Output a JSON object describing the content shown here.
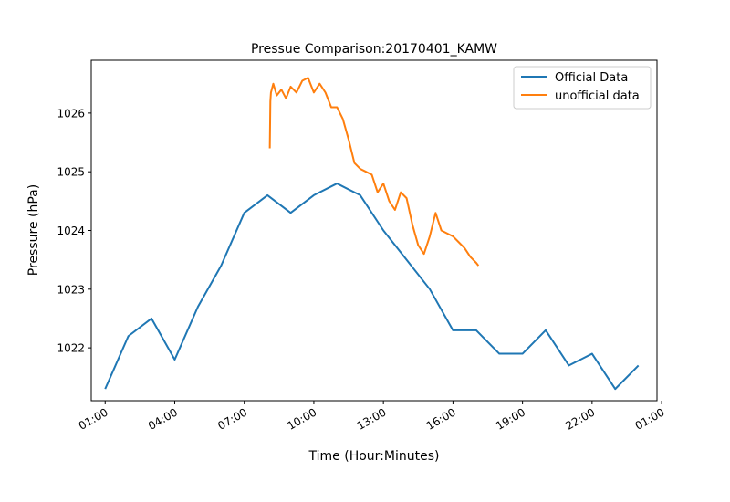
{
  "chart_data": {
    "type": "line",
    "title": "Pressue Comparison:20170401_KAMW",
    "xlabel": "Time (Hour:Minutes)",
    "ylabel": "Pressure (hPa)",
    "x_unit": "hours",
    "xlim": [
      -1.2,
      47.6
    ],
    "ylim": [
      1021.1,
      1026.9
    ],
    "x_ticks": [
      {
        "value": 0,
        "label": "01:00"
      },
      {
        "value": 6,
        "label": "04:00"
      },
      {
        "value": 12,
        "label": "07:00"
      },
      {
        "value": 18,
        "label": "10:00"
      },
      {
        "value": 24,
        "label": "13:00"
      },
      {
        "value": 30,
        "label": "16:00"
      },
      {
        "value": 36,
        "label": "19:00"
      },
      {
        "value": 42,
        "label": "22:00"
      },
      {
        "value": 48,
        "label": "01:00"
      }
    ],
    "y_ticks": [
      {
        "value": 1022,
        "label": "1022"
      },
      {
        "value": 1023,
        "label": "1023"
      },
      {
        "value": 1024,
        "label": "1024"
      },
      {
        "value": 1025,
        "label": "1025"
      },
      {
        "value": 1026,
        "label": "1026"
      }
    ],
    "legend": {
      "position": "top-right"
    },
    "grid": false,
    "series": [
      {
        "name": "Official Data",
        "color": "#1f77b4",
        "x": [
          0,
          2,
          4,
          6,
          8,
          10,
          12,
          14,
          16,
          18,
          20,
          22,
          24,
          26,
          28,
          30,
          32,
          34,
          36,
          38,
          40,
          42,
          44,
          46
        ],
        "y": [
          1021.3,
          1022.2,
          1022.5,
          1021.8,
          1022.7,
          1023.4,
          1024.3,
          1024.6,
          1024.3,
          1024.6,
          1024.8,
          1024.6,
          1024.0,
          1023.5,
          1023.0,
          1022.3,
          1022.3,
          1021.9,
          1021.9,
          1022.3,
          1021.7,
          1021.9,
          1021.3,
          1021.7
        ]
      },
      {
        "name": "unofficial data",
        "color": "#ff7f0e",
        "x": [
          14.2,
          14.25,
          14.3,
          14.5,
          14.8,
          15.2,
          15.6,
          16.0,
          16.5,
          17.0,
          17.5,
          18.0,
          18.5,
          19.0,
          19.5,
          20.0,
          20.5,
          21.0,
          21.5,
          22.0,
          22.5,
          23.0,
          23.5,
          24.0,
          24.5,
          25.0,
          25.5,
          26.0,
          26.5,
          27.0,
          27.5,
          28.0,
          28.5,
          29.0,
          29.5,
          30.0,
          30.5,
          31.0,
          31.5,
          32.0,
          32.2
        ],
        "y": [
          1025.4,
          1026.2,
          1026.35,
          1026.5,
          1026.3,
          1026.4,
          1026.25,
          1026.45,
          1026.35,
          1026.55,
          1026.6,
          1026.35,
          1026.5,
          1026.35,
          1026.1,
          1026.1,
          1025.9,
          1025.55,
          1025.15,
          1025.05,
          1025.0,
          1024.95,
          1024.65,
          1024.8,
          1024.5,
          1024.35,
          1024.65,
          1024.55,
          1024.1,
          1023.75,
          1023.6,
          1023.9,
          1024.3,
          1024.0,
          1023.95,
          1023.9,
          1023.8,
          1023.7,
          1023.55,
          1023.45,
          1023.4
        ]
      }
    ]
  }
}
